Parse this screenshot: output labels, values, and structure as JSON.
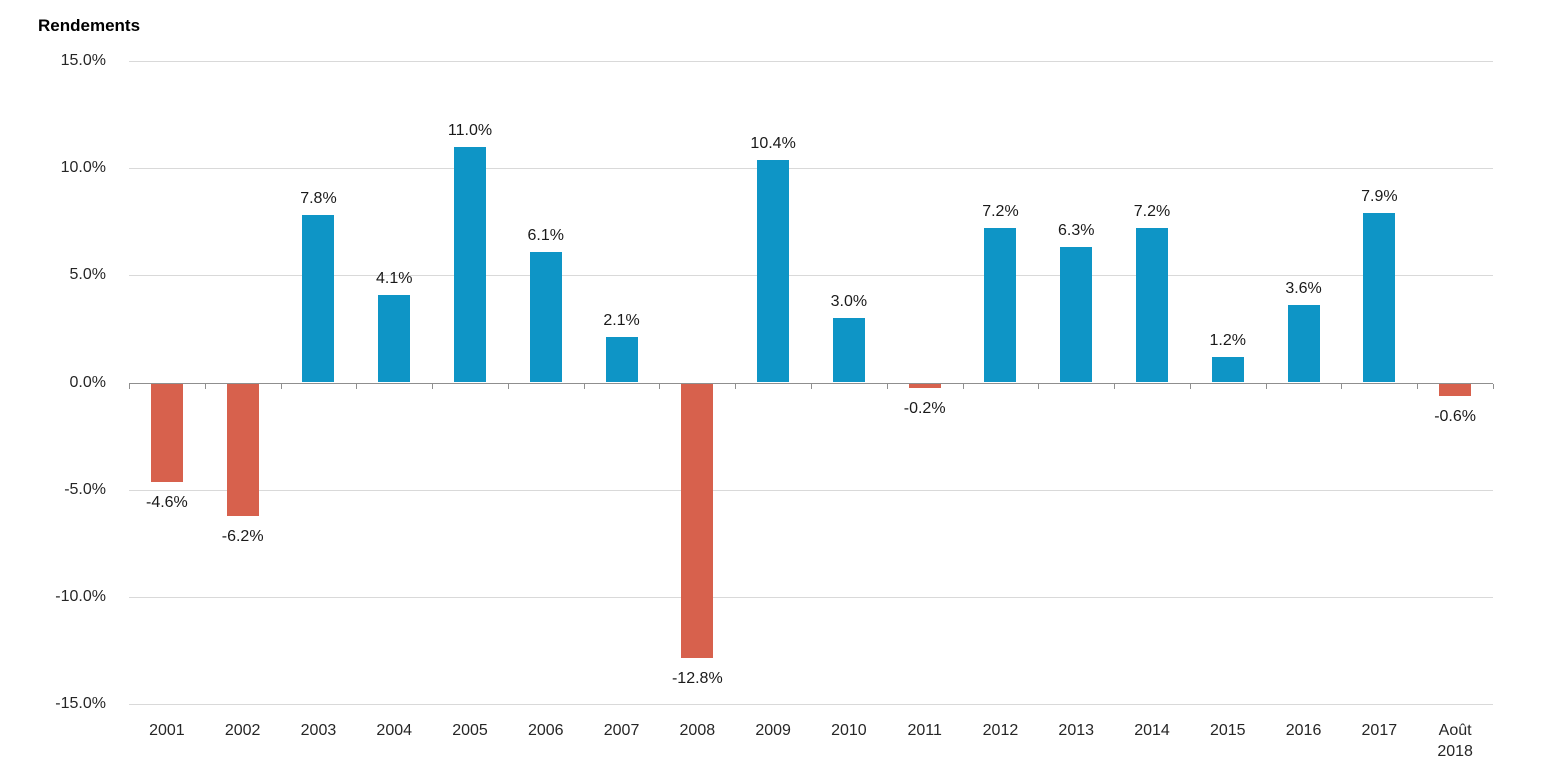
{
  "title": "Rendements",
  "chart_data": {
    "type": "bar",
    "title": "Rendements",
    "categories": [
      "2001",
      "2002",
      "2003",
      "2004",
      "2005",
      "2006",
      "2007",
      "2008",
      "2009",
      "2010",
      "2011",
      "2012",
      "2013",
      "2014",
      "2015",
      "2016",
      "2017",
      "Août 2018"
    ],
    "values": [
      -4.6,
      -6.2,
      7.8,
      4.1,
      11.0,
      6.1,
      2.1,
      -12.8,
      10.4,
      3.0,
      -0.2,
      7.2,
      6.3,
      7.2,
      1.2,
      3.6,
      7.9,
      -0.6
    ],
    "labels": [
      "-4.6%",
      "-6.2%",
      "7.8%",
      "4.1%",
      "11.0%",
      "6.1%",
      "2.1%",
      "-12.8%",
      "10.4%",
      "3.0%",
      "-0.2%",
      "7.2%",
      "6.3%",
      "7.2%",
      "1.2%",
      "3.6%",
      "7.9%",
      "-0.6%"
    ],
    "xlabel": "",
    "ylabel": "",
    "ylim": [
      -15,
      15
    ],
    "yticks": [
      {
        "value": 15,
        "label": "15.0%"
      },
      {
        "value": 10,
        "label": "10.0%"
      },
      {
        "value": 5,
        "label": "5.0%"
      },
      {
        "value": 0,
        "label": "0.0%"
      },
      {
        "value": -5,
        "label": "-5.0%"
      },
      {
        "value": -10,
        "label": "-10.0%"
      },
      {
        "value": -15,
        "label": "-15.0%"
      }
    ],
    "grid": "horizontal",
    "legend": "none",
    "positive_color": "#0E95C6",
    "negative_color": "#D7614D",
    "gridline_color": "#D9D9D9",
    "axis_color": "#8F8F8F",
    "text_color": "#262626",
    "label_color": "#1A1A1A"
  }
}
